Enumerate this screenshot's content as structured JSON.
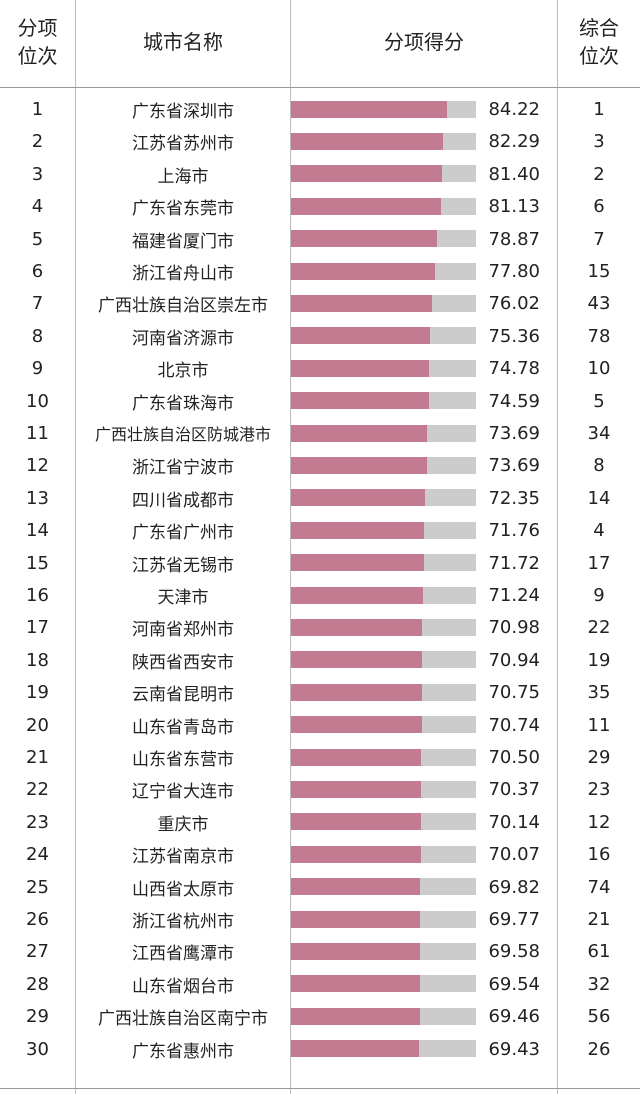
{
  "header": {
    "rank_line1": "分项",
    "rank_line2": "位次",
    "city": "城市名称",
    "score": "分项得分",
    "overall_line1": "综合",
    "overall_line2": "位次"
  },
  "colors": {
    "bar": "#c27b91",
    "track": "#cccccc"
  },
  "chart_data": {
    "type": "bar",
    "title": "",
    "xlim": [
      0,
      100
    ],
    "rows": [
      {
        "rank": "1",
        "city": "广东省深圳市",
        "score": "84.22",
        "value": 84.22,
        "overall": "1"
      },
      {
        "rank": "2",
        "city": "江苏省苏州市",
        "score": "82.29",
        "value": 82.29,
        "overall": "3"
      },
      {
        "rank": "3",
        "city": "上海市",
        "score": "81.40",
        "value": 81.4,
        "overall": "2"
      },
      {
        "rank": "4",
        "city": "广东省东莞市",
        "score": "81.13",
        "value": 81.13,
        "overall": "6"
      },
      {
        "rank": "5",
        "city": "福建省厦门市",
        "score": "78.87",
        "value": 78.87,
        "overall": "7"
      },
      {
        "rank": "6",
        "city": "浙江省舟山市",
        "score": "77.80",
        "value": 77.8,
        "overall": "15"
      },
      {
        "rank": "7",
        "city": "广西壮族自治区崇左市",
        "score": "76.02",
        "value": 76.02,
        "overall": "43"
      },
      {
        "rank": "8",
        "city": "河南省济源市",
        "score": "75.36",
        "value": 75.36,
        "overall": "78"
      },
      {
        "rank": "9",
        "city": "北京市",
        "score": "74.78",
        "value": 74.78,
        "overall": "10"
      },
      {
        "rank": "10",
        "city": "广东省珠海市",
        "score": "74.59",
        "value": 74.59,
        "overall": "5"
      },
      {
        "rank": "11",
        "city": "广西壮族自治区防城港市",
        "score": "73.69",
        "value": 73.69,
        "overall": "34"
      },
      {
        "rank": "12",
        "city": "浙江省宁波市",
        "score": "73.69",
        "value": 73.69,
        "overall": "8"
      },
      {
        "rank": "13",
        "city": "四川省成都市",
        "score": "72.35",
        "value": 72.35,
        "overall": "14"
      },
      {
        "rank": "14",
        "city": "广东省广州市",
        "score": "71.76",
        "value": 71.76,
        "overall": "4"
      },
      {
        "rank": "15",
        "city": "江苏省无锡市",
        "score": "71.72",
        "value": 71.72,
        "overall": "17"
      },
      {
        "rank": "16",
        "city": "天津市",
        "score": "71.24",
        "value": 71.24,
        "overall": "9"
      },
      {
        "rank": "17",
        "city": "河南省郑州市",
        "score": "70.98",
        "value": 70.98,
        "overall": "22"
      },
      {
        "rank": "18",
        "city": "陕西省西安市",
        "score": "70.94",
        "value": 70.94,
        "overall": "19"
      },
      {
        "rank": "19",
        "city": "云南省昆明市",
        "score": "70.75",
        "value": 70.75,
        "overall": "35"
      },
      {
        "rank": "20",
        "city": "山东省青岛市",
        "score": "70.74",
        "value": 70.74,
        "overall": "11"
      },
      {
        "rank": "21",
        "city": "山东省东营市",
        "score": "70.50",
        "value": 70.5,
        "overall": "29"
      },
      {
        "rank": "22",
        "city": "辽宁省大连市",
        "score": "70.37",
        "value": 70.37,
        "overall": "23"
      },
      {
        "rank": "23",
        "city": "重庆市",
        "score": "70.14",
        "value": 70.14,
        "overall": "12"
      },
      {
        "rank": "24",
        "city": "江苏省南京市",
        "score": "70.07",
        "value": 70.07,
        "overall": "16"
      },
      {
        "rank": "25",
        "city": "山西省太原市",
        "score": "69.82",
        "value": 69.82,
        "overall": "74"
      },
      {
        "rank": "26",
        "city": "浙江省杭州市",
        "score": "69.77",
        "value": 69.77,
        "overall": "21"
      },
      {
        "rank": "27",
        "city": "江西省鹰潭市",
        "score": "69.58",
        "value": 69.58,
        "overall": "61"
      },
      {
        "rank": "28",
        "city": "山东省烟台市",
        "score": "69.54",
        "value": 69.54,
        "overall": "32"
      },
      {
        "rank": "29",
        "city": "广西壮族自治区南宁市",
        "score": "69.46",
        "value": 69.46,
        "overall": "56"
      },
      {
        "rank": "30",
        "city": "广东省惠州市",
        "score": "69.43",
        "value": 69.43,
        "overall": "26"
      }
    ]
  }
}
